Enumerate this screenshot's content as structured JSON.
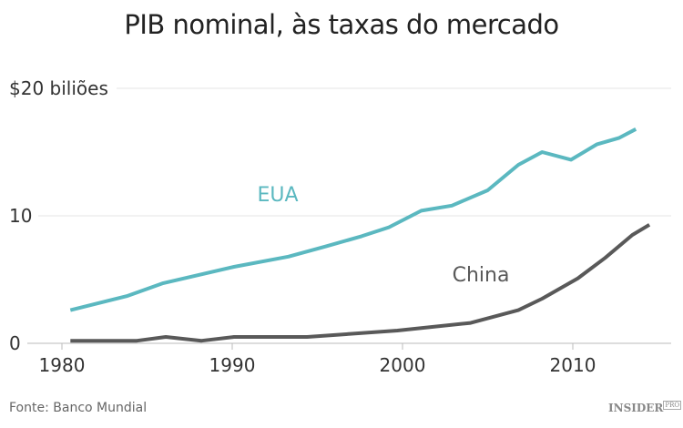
{
  "chart_data": {
    "type": "line",
    "title": "PIB nominal, às taxas do mercado",
    "ylabel": "",
    "xlabel": "",
    "xlim": [
      1978.5,
      2016
    ],
    "ylim": [
      0,
      20
    ],
    "x_ticks": [
      "1980",
      "1990",
      "2000",
      "2010"
    ],
    "y_ticks": [
      {
        "value": 0,
        "label": "0"
      },
      {
        "value": 10,
        "label": "10"
      },
      {
        "value": 20,
        "label": "$20 biliões"
      }
    ],
    "grid": "horizontal",
    "series": [
      {
        "name": "EUA",
        "color": "#5bb8c0",
        "points": [
          [
            1980.5,
            2.6
          ],
          [
            1983.8,
            3.7
          ],
          [
            1985.9,
            4.7
          ],
          [
            1990.1,
            6.0
          ],
          [
            1993.3,
            6.8
          ],
          [
            1995.5,
            7.6
          ],
          [
            1997.6,
            8.4
          ],
          [
            1999.2,
            9.1
          ],
          [
            2001.1,
            10.4
          ],
          [
            2002.9,
            10.8
          ],
          [
            2005.0,
            12.0
          ],
          [
            2006.8,
            14.0
          ],
          [
            2008.2,
            15.0
          ],
          [
            2009.9,
            14.4
          ],
          [
            2011.4,
            15.6
          ],
          [
            2012.7,
            16.1
          ],
          [
            2013.7,
            16.8
          ]
        ]
      },
      {
        "name": "China",
        "color": "#595959",
        "points": [
          [
            1980.5,
            0.2
          ],
          [
            1984.4,
            0.2
          ],
          [
            1986.1,
            0.5
          ],
          [
            1988.2,
            0.2
          ],
          [
            1990.1,
            0.5
          ],
          [
            1994.4,
            0.5
          ],
          [
            1999.7,
            1.0
          ],
          [
            2004.0,
            1.6
          ],
          [
            2006.8,
            2.6
          ],
          [
            2008.2,
            3.5
          ],
          [
            2010.3,
            5.1
          ],
          [
            2011.9,
            6.7
          ],
          [
            2013.5,
            8.5
          ],
          [
            2014.5,
            9.3
          ]
        ]
      }
    ],
    "legend": "inline labels"
  },
  "source": "Fonte: Banco Mundial",
  "logo": {
    "main": "INSIDER",
    "sub": "PRO"
  }
}
